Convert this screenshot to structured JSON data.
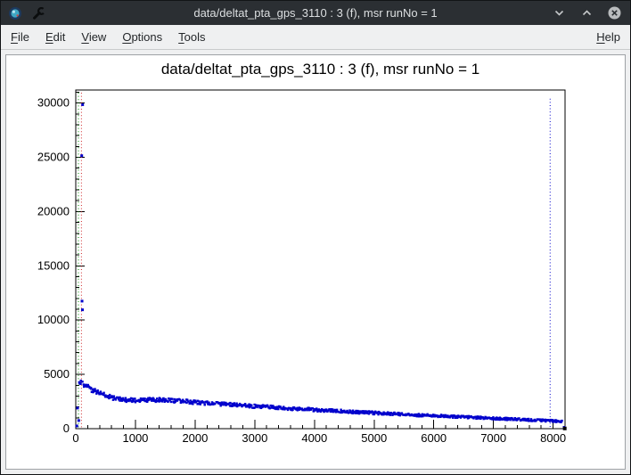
{
  "window": {
    "title": "data/deltat_pta_gps_3110 : 3 (f), msr runNo = 1",
    "controls": {
      "minimize": "minimize",
      "maximize": "maximize",
      "close": "close"
    }
  },
  "menubar": {
    "items": [
      "File",
      "Edit",
      "View",
      "Options",
      "Tools"
    ],
    "right_items": [
      "Help"
    ]
  },
  "chart_data": {
    "type": "scatter",
    "title": "data/deltat_pta_gps_3110 : 3 (f), msr runNo = 1",
    "xlim": [
      0,
      8200
    ],
    "ylim": [
      0,
      31200
    ],
    "x_tick_labels": [
      "0",
      "1000",
      "2000",
      "3000",
      "4000",
      "5000",
      "6000",
      "7000",
      "8000"
    ],
    "y_tick_labels": [
      "0",
      "5000",
      "10000",
      "15000",
      "20000",
      "25000",
      "30000"
    ],
    "x_minor_step": 200,
    "y_minor_step": 1000,
    "grid": "off",
    "legend": "none",
    "marker_color": "#0000cc",
    "vlines": [
      {
        "x": 45,
        "color": "#008800",
        "style": "dotted",
        "name": "t0-line"
      },
      {
        "x": 95,
        "color": "#cc2222",
        "style": "dotted",
        "name": "first-good-bin-line"
      },
      {
        "x": 7950,
        "color": "#0000cc",
        "style": "dotted",
        "name": "last-good-bin-line"
      }
    ],
    "peak_points": [
      [
        115,
        29850
      ],
      [
        100,
        25150
      ],
      [
        105,
        11750
      ],
      [
        112,
        10950
      ],
      [
        62,
        4250
      ],
      [
        78,
        4150
      ],
      [
        30,
        1900
      ],
      [
        50,
        750
      ],
      [
        18,
        250
      ]
    ],
    "band_anchors": [
      [
        90,
        4300
      ],
      [
        150,
        4000
      ],
      [
        220,
        3750
      ],
      [
        300,
        3500
      ],
      [
        400,
        3250
      ],
      [
        500,
        3050
      ],
      [
        650,
        2800
      ],
      [
        800,
        2650
      ],
      [
        1000,
        2600
      ],
      [
        1200,
        2650
      ],
      [
        1400,
        2650
      ],
      [
        1600,
        2600
      ],
      [
        1800,
        2520
      ],
      [
        2000,
        2430
      ],
      [
        2250,
        2330
      ],
      [
        2500,
        2240
      ],
      [
        2750,
        2150
      ],
      [
        3000,
        2060
      ],
      [
        3250,
        1980
      ],
      [
        3500,
        1900
      ],
      [
        3750,
        1820
      ],
      [
        4000,
        1740
      ],
      [
        4250,
        1660
      ],
      [
        4500,
        1590
      ],
      [
        4750,
        1520
      ],
      [
        5000,
        1450
      ],
      [
        5250,
        1380
      ],
      [
        5500,
        1310
      ],
      [
        5750,
        1250
      ],
      [
        6000,
        1190
      ],
      [
        6250,
        1130
      ],
      [
        6500,
        1070
      ],
      [
        6750,
        1010
      ],
      [
        7000,
        950
      ],
      [
        7250,
        890
      ],
      [
        7500,
        830
      ],
      [
        7750,
        770
      ],
      [
        8000,
        710
      ],
      [
        8150,
        640
      ]
    ],
    "band_step": 18,
    "band_jitter": 160,
    "extra_points": [
      {
        "x": 8185,
        "y": 120,
        "color": "#0000cc",
        "s": 3
      },
      {
        "x": 8195,
        "y": 20,
        "color": "#000000",
        "s": 4
      }
    ]
  }
}
